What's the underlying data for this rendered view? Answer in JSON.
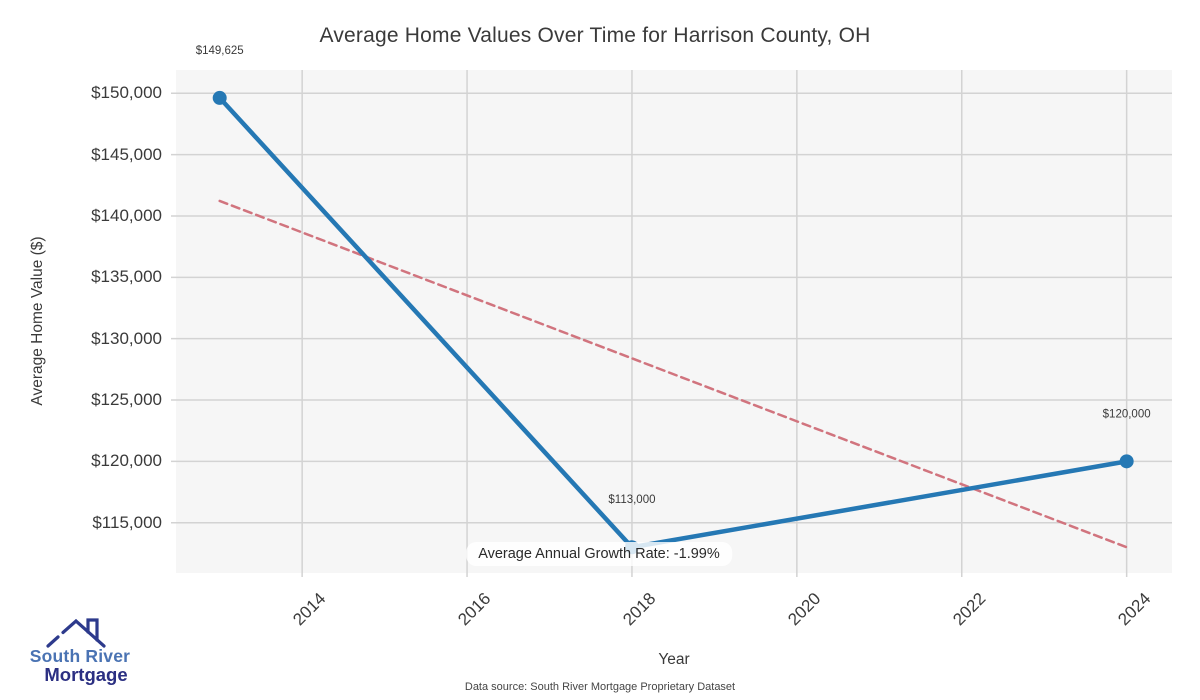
{
  "title": "Average Home Values Over Time for Harrison County, OH",
  "footer": {
    "source": "Data source: South River Mortgage Proprietary Dataset"
  },
  "logo": {
    "line1": "South River",
    "line2": "Mortgage",
    "colors": {
      "line1": "#4a73b3",
      "line2": "#2b2f82",
      "roof": "#2d3a8c"
    }
  },
  "chart_data": {
    "type": "line",
    "title": "Average Home Values Over Time for Harrison County, OH",
    "xlabel": "Year",
    "ylabel": "Average Home Value ($)",
    "xlim": [
      2012.47,
      2024.55
    ],
    "ylim": [
      110900,
      151900
    ],
    "grid": true,
    "x_ticks": [
      {
        "value": 2014,
        "label": "2014"
      },
      {
        "value": 2016,
        "label": "2016"
      },
      {
        "value": 2018,
        "label": "2018"
      },
      {
        "value": 2020,
        "label": "2020"
      },
      {
        "value": 2022,
        "label": "2022"
      },
      {
        "value": 2024,
        "label": "2024"
      }
    ],
    "y_ticks": [
      {
        "value": 115000,
        "label": "$115,000"
      },
      {
        "value": 120000,
        "label": "$120,000"
      },
      {
        "value": 125000,
        "label": "$125,000"
      },
      {
        "value": 130000,
        "label": "$130,000"
      },
      {
        "value": 135000,
        "label": "$135,000"
      },
      {
        "value": 140000,
        "label": "$140,000"
      },
      {
        "value": 145000,
        "label": "$145,000"
      },
      {
        "value": 150000,
        "label": "$150,000"
      }
    ],
    "series": [
      {
        "name": "trend-line",
        "style": "dashed",
        "color": "#d1747e",
        "x": [
          2013,
          2024
        ],
        "y": [
          141227,
          113000
        ]
      },
      {
        "name": "home-values",
        "style": "solid",
        "color": "#2578b4",
        "x": [
          2013,
          2018,
          2024
        ],
        "y": [
          149625,
          113000,
          120000
        ],
        "point_labels": [
          "$149,625",
          "$113,000",
          "$120,000"
        ]
      }
    ],
    "annotation": {
      "text": "Average Annual Growth Rate: -1.99%",
      "x": 2017.6,
      "y": 112450
    },
    "colors": {
      "plot_bg": "#f6f6f6",
      "grid": "#d3d3d3",
      "text": "#3a3a3a"
    }
  }
}
